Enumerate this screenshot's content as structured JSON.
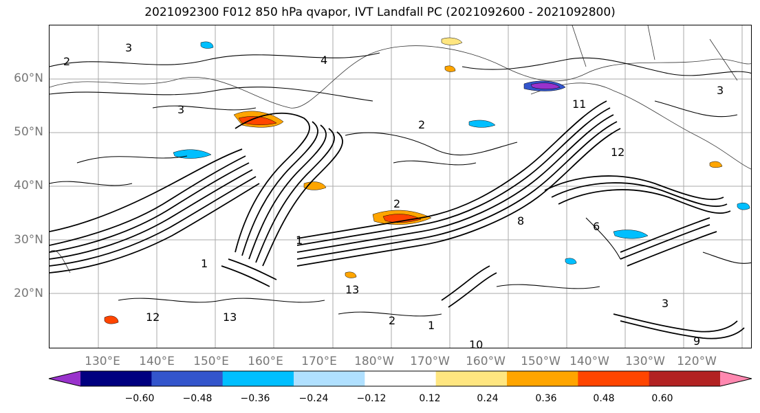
{
  "title": "2021092300 F012 850 hPa qvapor, IVT Landfall PC (2021092600 - 2021092800)",
  "lat_labels": [
    "60°N",
    "50°N",
    "40°N",
    "30°N",
    "20°N"
  ],
  "lon_labels": [
    "130°E",
    "140°E",
    "150°E",
    "160°E",
    "170°E",
    "180°W",
    "170°W",
    "160°W",
    "150°W",
    "140°W",
    "130°W",
    "120°W"
  ],
  "colorbar": {
    "colors": [
      "#9932cc",
      "#000080",
      "#3355cc",
      "#00bfff",
      "#b0e0ff",
      "#ffffff",
      "#ffe680",
      "#ffa500",
      "#ff4500",
      "#b22222",
      "#ff88b0"
    ],
    "tick_labels": [
      "−0.60",
      "−0.48",
      "−0.36",
      "−0.24",
      "−0.12",
      "0.12",
      "0.24",
      "0.36",
      "0.48",
      "0.60"
    ]
  },
  "contour_labels": [
    "3",
    "4",
    "2",
    "3",
    "3",
    "2",
    "2",
    "1",
    "1",
    "13",
    "12",
    "13",
    "1",
    "2",
    "3",
    "6",
    "8",
    "9",
    "10",
    "11",
    "12"
  ]
}
